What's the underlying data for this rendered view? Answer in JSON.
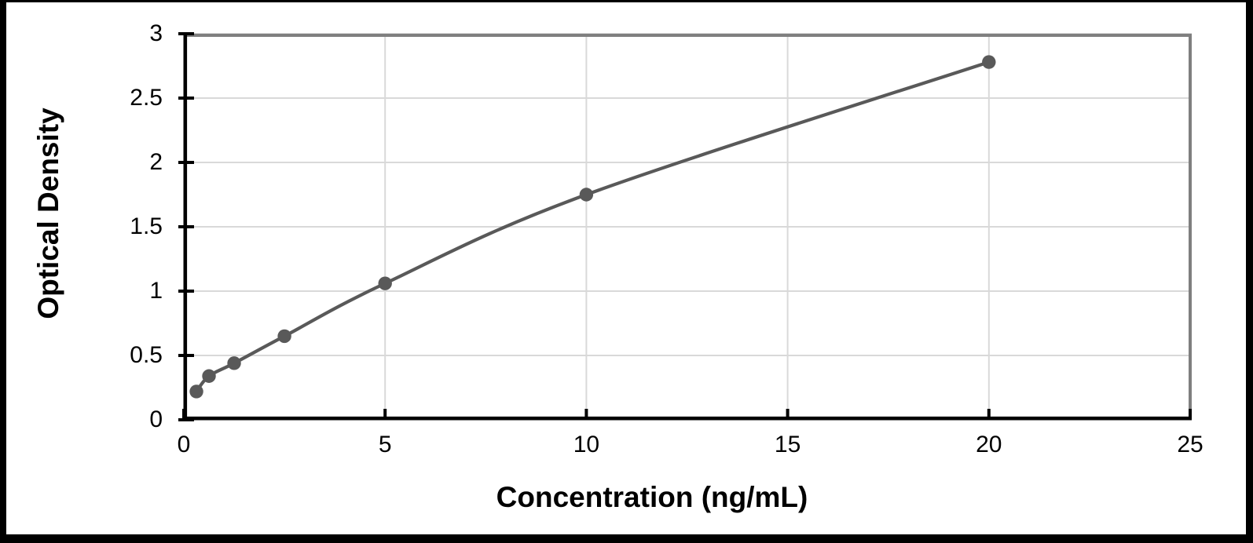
{
  "chart_data": {
    "type": "line",
    "title": "",
    "xlabel": "Concentration (ng/mL)",
    "ylabel": "Optical Density",
    "x": [
      0.313,
      0.625,
      1.25,
      2.5,
      5,
      10,
      20
    ],
    "y": [
      0.22,
      0.34,
      0.44,
      0.65,
      1.06,
      1.75,
      2.78
    ],
    "xlim": [
      0,
      25
    ],
    "ylim": [
      0,
      3
    ],
    "x_ticks": [
      0,
      5,
      10,
      15,
      20,
      25
    ],
    "x_tick_labels": [
      "0",
      "5",
      "10",
      "15",
      "20",
      "25"
    ],
    "y_ticks": [
      0,
      0.5,
      1,
      1.5,
      2,
      2.5,
      3
    ],
    "y_tick_labels": [
      "0",
      "0.5",
      "1",
      "1.5",
      "2",
      "2.5",
      "3"
    ],
    "grid": true,
    "legend": false,
    "line_style": "smooth",
    "marker": "circle",
    "colors": {
      "series": "#595959",
      "gridline": "#d9d9d9",
      "axis": "#000000",
      "plot_border": "#7f7f7f",
      "frame": "#000000",
      "background": "#ffffff"
    }
  }
}
